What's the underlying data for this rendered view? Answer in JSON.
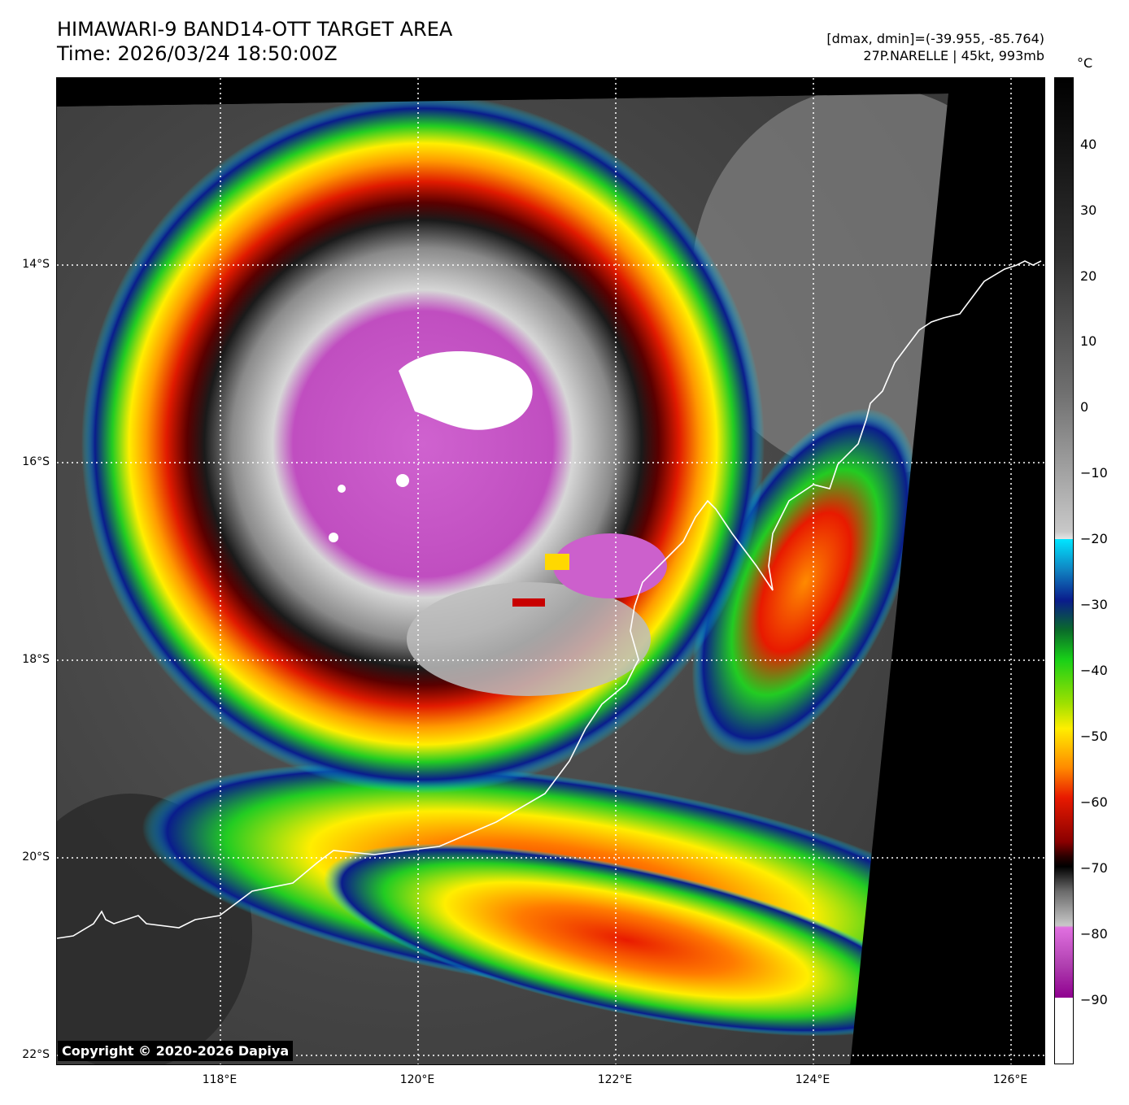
{
  "header": {
    "title_line1": "HIMAWARI-9 BAND14-OTT TARGET AREA",
    "title_line2": "Time: 2026/03/24 18:50:00Z",
    "info_line1": "[dmax, dmin]=(-39.955, -85.764)",
    "info_line2": "27P.NARELLE | 45kt, 993mb"
  },
  "map": {
    "lat_labels": [
      "14°S",
      "16°S",
      "18°S",
      "20°S",
      "22°S"
    ],
    "lon_labels": [
      "118°E",
      "120°E",
      "122°E",
      "124°E",
      "126°E"
    ],
    "copyright": "Copyright © 2020-2026 Dapiya"
  },
  "colorbar": {
    "unit": "°C",
    "ticks": [
      "40",
      "30",
      "20",
      "10",
      "0",
      "−10",
      "−20",
      "−30",
      "−40",
      "−50",
      "−60",
      "−70",
      "−80",
      "−90"
    ],
    "colors": {
      "warm": "#000000",
      "cold_cloud": "#c8c8c8",
      "cyan": "#00e5ff",
      "blue": "#0a1c8c",
      "green": "#18d018",
      "yellow": "#ffee00",
      "red": "#e81a00",
      "dark_red": "#5a0000",
      "magenta": "#cc55cc",
      "white": "#ffffff"
    }
  }
}
